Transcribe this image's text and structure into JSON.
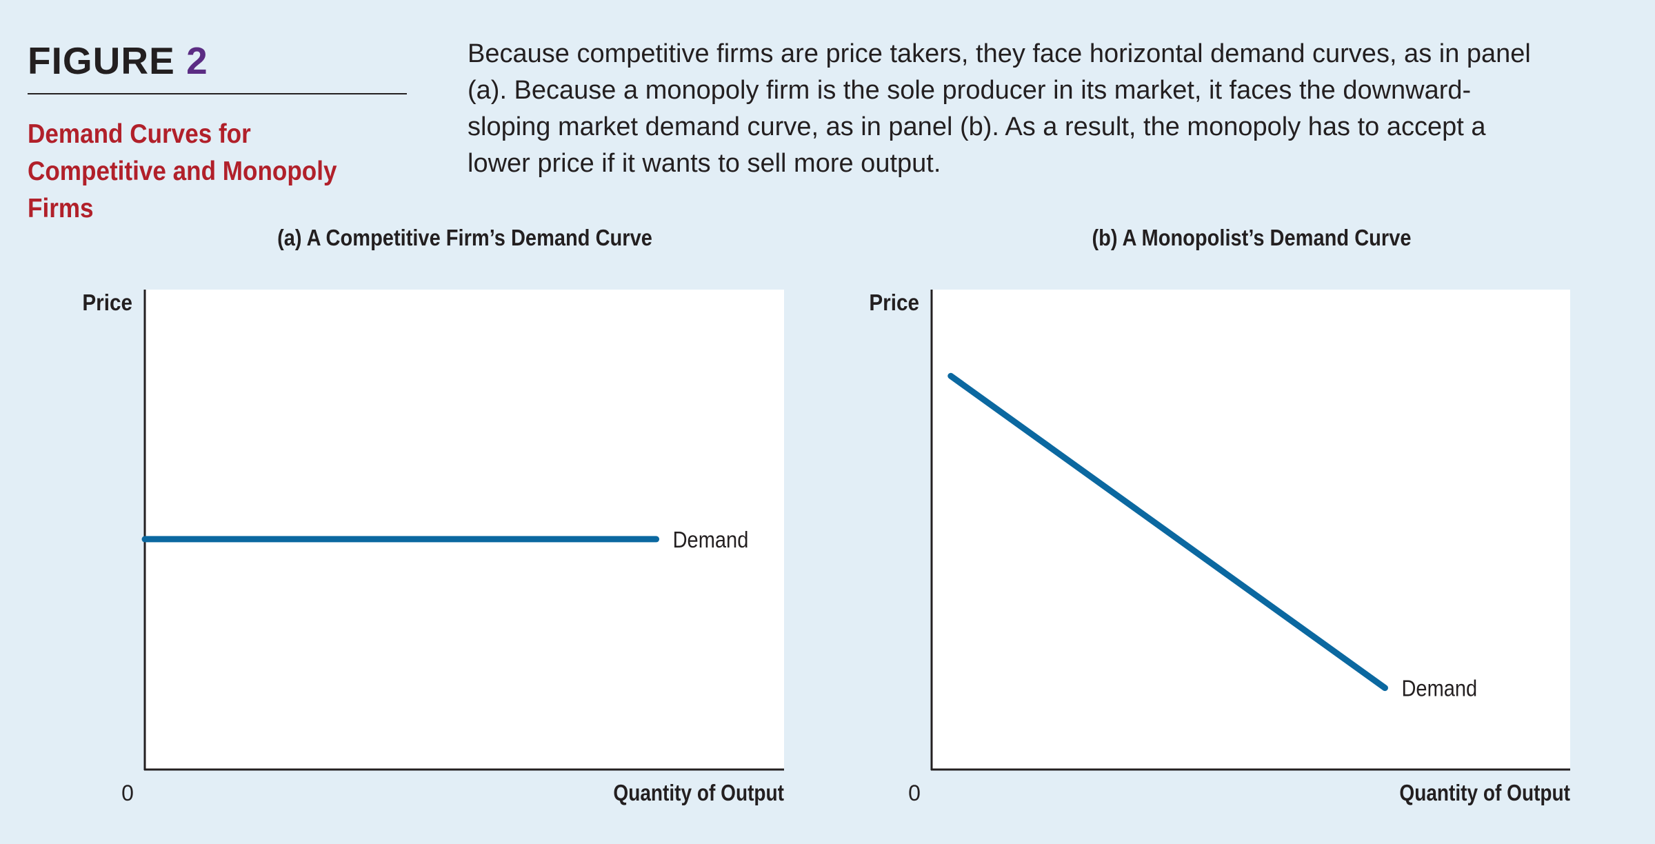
{
  "figure": {
    "word": "FIGURE",
    "number": "2",
    "title": "Demand Curves for Competitive and Monopoly Firms",
    "caption": "Because competitive firms are price takers, they face horizontal demand curves, as in panel (a). Because a monopoly firm is the sole producer in its market, it faces the downward-sloping market demand curve, as in panel (b). As a result, the monopoly has to accept a lower price if it wants to sell more output."
  },
  "colors": {
    "background": "#e2eef6",
    "plot_background": "#ffffff",
    "curve": "#0b68a0",
    "figure_number": "#5b2c83",
    "title": "#b1202a"
  },
  "chart_data": [
    {
      "type": "line",
      "title": "(a) A Competitive Firm’s Demand Curve",
      "xlabel": "Quantity of Output",
      "ylabel": "Price",
      "origin_label": "0",
      "xlim": [
        0,
        100
      ],
      "ylim": [
        0,
        100
      ],
      "grid": false,
      "series": [
        {
          "name": "Demand",
          "x": [
            0,
            80
          ],
          "y": [
            48,
            48
          ]
        }
      ]
    },
    {
      "type": "line",
      "title": "(b) A Monopolist’s Demand Curve",
      "xlabel": "Quantity of Output",
      "ylabel": "Price",
      "origin_label": "0",
      "xlim": [
        0,
        100
      ],
      "ylim": [
        0,
        100
      ],
      "grid": false,
      "series": [
        {
          "name": "Demand",
          "x": [
            3,
            71
          ],
          "y": [
            82,
            17
          ]
        }
      ]
    }
  ]
}
